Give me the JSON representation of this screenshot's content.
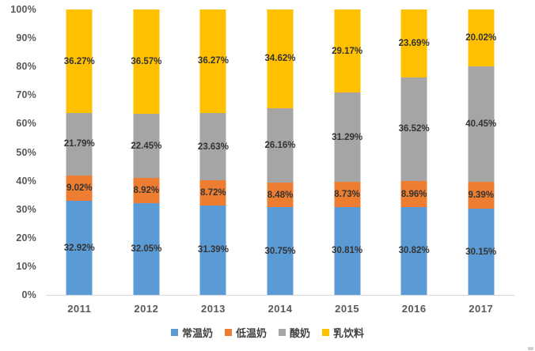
{
  "chart_data": {
    "type": "bar",
    "stacked": true,
    "percent_stacked": true,
    "title": "",
    "xlabel": "",
    "ylabel": "",
    "grid": false,
    "axis_line_color": "#D9D9D9",
    "data_label_color": "#333333",
    "axis_label_color": "#595959",
    "categories": [
      "2011",
      "2012",
      "2013",
      "2014",
      "2015",
      "2016",
      "2017"
    ],
    "series": [
      {
        "name": "常温奶",
        "color": "#5B9BD5",
        "values": [
          32.92,
          32.05,
          31.39,
          30.75,
          30.81,
          30.82,
          30.15
        ],
        "labels": [
          "32.92%",
          "32.05%",
          "31.39%",
          "30.75%",
          "30.81%",
          "30.82%",
          "30.15%"
        ]
      },
      {
        "name": "低温奶",
        "color": "#ED7D31",
        "values": [
          9.02,
          8.92,
          8.72,
          8.48,
          8.73,
          8.96,
          9.39
        ],
        "labels": [
          "9.02%",
          "8.92%",
          "8.72%",
          "8.48%",
          "8.73%",
          "8.96%",
          "9.39%"
        ]
      },
      {
        "name": "酸奶",
        "color": "#A5A5A5",
        "values": [
          21.79,
          22.45,
          23.63,
          26.16,
          31.29,
          36.52,
          40.45
        ],
        "labels": [
          "21.79%",
          "22.45%",
          "23.63%",
          "26.16%",
          "31.29%",
          "36.52%",
          "40.45%"
        ]
      },
      {
        "name": "乳饮料",
        "color": "#FFC000",
        "values": [
          36.27,
          36.57,
          36.27,
          34.62,
          29.17,
          23.69,
          20.02
        ],
        "labels": [
          "36.27%",
          "36.57%",
          "36.27%",
          "34.62%",
          "29.17%",
          "23.69%",
          "20.02%"
        ]
      }
    ],
    "y_axis": {
      "min": 0,
      "max": 100,
      "ticks": [
        "0%",
        "10%",
        "20%",
        "30%",
        "40%",
        "50%",
        "60%",
        "70%",
        "80%",
        "90%",
        "100%"
      ]
    },
    "legend": {
      "position": "bottom",
      "entries": [
        "常温奶",
        "低温奶",
        "酸奶",
        "乳饮料"
      ]
    }
  }
}
